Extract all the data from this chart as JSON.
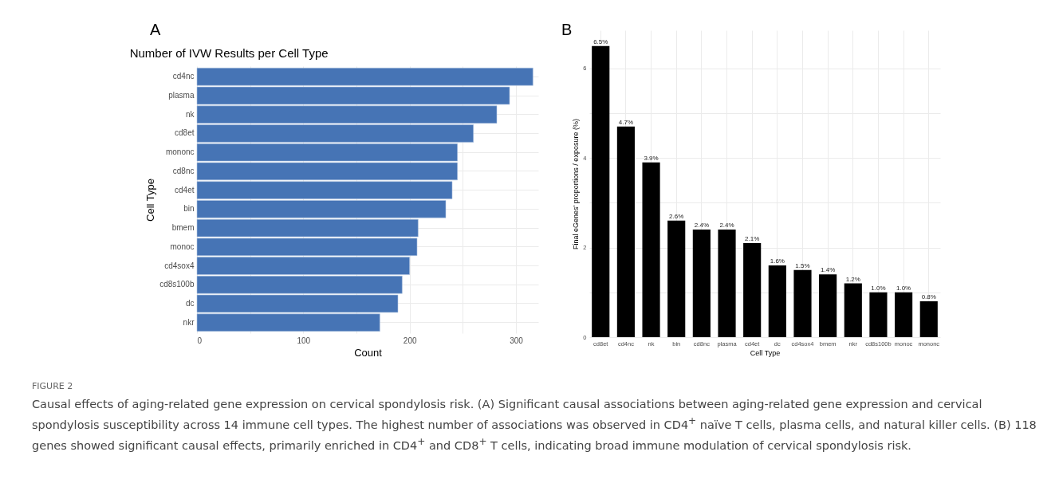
{
  "chart_data": [
    {
      "type": "bar",
      "orientation": "horizontal",
      "title": "Number of IVW Results per Cell Type",
      "xlabel": "Count",
      "ylabel": "Cell Type",
      "categories": [
        "cd4nc",
        "plasma",
        "nk",
        "cd8et",
        "mononc",
        "cd8nc",
        "cd4et",
        "bin",
        "bmem",
        "monoc",
        "cd4sox4",
        "cd8s100b",
        "dc",
        "nkr"
      ],
      "values": [
        316,
        294,
        282,
        260,
        245,
        245,
        240,
        234,
        208,
        207,
        200,
        193,
        189,
        172
      ],
      "color": "#4674b5",
      "xlim": [
        0,
        321
      ],
      "xticks": [
        0,
        {
          "value": 50,
          "label": null
        },
        100,
        {
          "value": 150,
          "label": null
        },
        200,
        {
          "value": 250,
          "label": null
        },
        300
      ],
      "grid": true,
      "annotations": [
        "A",
        "FIGURE 2",
        "Causal effects of aging-related gene expression on cervical spondylosis risk. (A) Significant causal associations between aging-related gene expression and cervical spondylosis susceptibility across 14 immune cell types. The highest number of associations was observed in CD4$^{+}$ naïve T cells, plasma cells, and natural killer cells. (B) 118 genes showed significant causal effects, primarily enriched in CD4$^{+}$ and CD8$^{+}$ T cells, indicating broad immune modulation of cervical spondylosis risk."
      ]
    },
    {
      "type": "bar",
      "xlabel": "Cell Type",
      "ylabel": "Final eGenes' proportions / exposure (%)",
      "categories": [
        "cd8et",
        "cd4nc",
        "nk",
        "bin",
        "cd8nc",
        "plasma",
        "cd4et",
        "dc",
        "cd4sox4",
        "bmem",
        "nkr",
        "cd8s100b",
        "monoc",
        "mononc"
      ],
      "values": [
        6.5,
        4.7,
        3.9,
        2.6,
        2.4,
        2.4,
        2.1,
        1.6,
        1.5,
        1.4,
        1.2,
        1.0,
        1.0,
        0.8
      ],
      "color": "#000000",
      "value_labels": [
        "6.5%",
        "4.7%",
        "3.9%",
        "2.6%",
        "2.4%",
        "2.4%",
        "2.1%",
        "1.6%",
        "1.5%",
        "1.4%",
        "1.2%",
        "1.0%",
        "1.0%",
        "0.8%"
      ],
      "ylim": [
        0,
        6.85
      ],
      "yticks": [
        0,
        {
          "value": 1,
          "label": null
        },
        2,
        {
          "value": 3,
          "label": null
        },
        4,
        {
          "value": 5,
          "label": null
        },
        6
      ],
      "grid": true,
      "annotations": [
        "B"
      ]
    }
  ]
}
